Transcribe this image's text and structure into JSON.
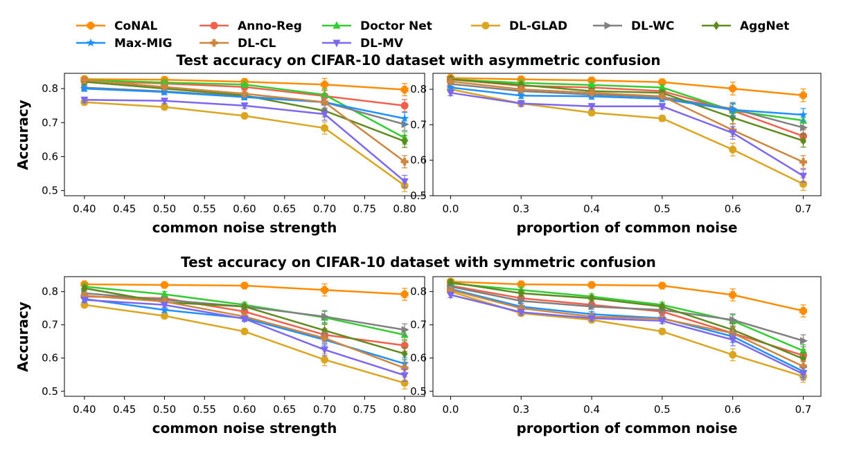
{
  "legend": [
    "CoNAL",
    "Anno-Reg",
    "Doctor Net",
    "DL-GLAD",
    "DL-WC",
    "AggNet",
    "Max-MIG",
    "DL-CL",
    "DL-MV"
  ],
  "series_style": {
    "CoNAL": {
      "color": "#ff8c00",
      "marker": "plusfilled"
    },
    "Anno-Reg": {
      "color": "#f0604c",
      "marker": "circle"
    },
    "Doctor Net": {
      "color": "#33cc33",
      "marker": "triangle-up"
    },
    "DL-GLAD": {
      "color": "#daa520",
      "marker": "circle"
    },
    "DL-WC": {
      "color": "#808080",
      "marker": "triangle-right"
    },
    "AggNet": {
      "color": "#5e8a1e",
      "marker": "diamond"
    },
    "Max-MIG": {
      "color": "#1e90ff",
      "marker": "star"
    },
    "DL-CL": {
      "color": "#cd853f",
      "marker": "plus"
    },
    "DL-MV": {
      "color": "#7b68ee",
      "marker": "triangle-down"
    }
  },
  "chart_data": [
    {
      "type": "line",
      "title": "Test accuracy on CIFAR-10 dataset with asymmetric confusion",
      "xlabel": "common noise strength",
      "ylabel": "Accuracy",
      "x": [
        0.4,
        0.5,
        0.6,
        0.7,
        0.8
      ],
      "xticks": [
        "0.40",
        "0.45",
        "0.50",
        "0.55",
        "0.60",
        "0.65",
        "0.70",
        "0.75",
        "0.80"
      ],
      "xtick_values": [
        0.4,
        0.45,
        0.5,
        0.55,
        0.6,
        0.65,
        0.7,
        0.75,
        0.8
      ],
      "xlim": [
        0.375,
        0.825
      ],
      "yticks": [
        "0.5",
        "0.6",
        "0.7",
        "0.8"
      ],
      "ylim": [
        0.485,
        0.845
      ],
      "series": [
        {
          "name": "CoNAL",
          "values": [
            0.828,
            0.826,
            0.82,
            0.812,
            0.797
          ]
        },
        {
          "name": "Anno-Reg",
          "values": [
            0.823,
            0.815,
            0.805,
            0.778,
            0.75
          ]
        },
        {
          "name": "Doctor Net",
          "values": [
            0.825,
            0.818,
            0.812,
            0.782,
            0.655
          ]
        },
        {
          "name": "DL-GLAD",
          "values": [
            0.76,
            0.746,
            0.72,
            0.684,
            0.515
          ]
        },
        {
          "name": "DL-WC",
          "values": [
            0.803,
            0.792,
            0.777,
            0.76,
            0.695
          ]
        },
        {
          "name": "AggNet",
          "values": [
            0.82,
            0.8,
            0.78,
            0.735,
            0.645
          ]
        },
        {
          "name": "Max-MIG",
          "values": [
            0.8,
            0.79,
            0.775,
            0.76,
            0.712
          ]
        },
        {
          "name": "DL-CL",
          "values": [
            0.825,
            0.805,
            0.785,
            0.76,
            0.585
          ]
        },
        {
          "name": "DL-MV",
          "values": [
            0.767,
            0.764,
            0.75,
            0.725,
            0.527
          ]
        }
      ]
    },
    {
      "type": "line",
      "title": "",
      "xlabel": "proportion of common noise",
      "ylabel": "",
      "x": [
        0.0,
        0.3,
        0.4,
        0.5,
        0.6,
        0.7
      ],
      "xticks": [
        "0.0",
        "0.3",
        "0.4",
        "0.5",
        "0.6",
        "0.7"
      ],
      "xtick_values": [
        0,
        1,
        2,
        3,
        4,
        5
      ],
      "xlim": [
        -0.25,
        5.25
      ],
      "yticks": [
        "0.5",
        "0.6",
        "0.7",
        "0.8"
      ],
      "ylim": [
        0.5,
        0.845
      ],
      "series": [
        {
          "name": "CoNAL",
          "values": [
            0.832,
            0.828,
            0.825,
            0.82,
            0.802,
            0.783
          ]
        },
        {
          "name": "Anno-Reg",
          "values": [
            0.828,
            0.81,
            0.805,
            0.795,
            0.74,
            0.668
          ]
        },
        {
          "name": "Doctor Net",
          "values": [
            0.828,
            0.818,
            0.812,
            0.805,
            0.74,
            0.712
          ]
        },
        {
          "name": "DL-GLAD",
          "values": [
            0.8,
            0.76,
            0.734,
            0.718,
            0.63,
            0.533
          ]
        },
        {
          "name": "DL-WC",
          "values": [
            0.815,
            0.795,
            0.785,
            0.778,
            0.745,
            0.692
          ]
        },
        {
          "name": "AggNet",
          "values": [
            0.828,
            0.812,
            0.795,
            0.79,
            0.72,
            0.655
          ]
        },
        {
          "name": "Max-MIG",
          "values": [
            0.805,
            0.782,
            0.78,
            0.773,
            0.742,
            0.728
          ]
        },
        {
          "name": "DL-CL",
          "values": [
            0.822,
            0.8,
            0.79,
            0.78,
            0.685,
            0.595
          ]
        },
        {
          "name": "DL-MV",
          "values": [
            0.79,
            0.76,
            0.752,
            0.752,
            0.677,
            0.556
          ]
        }
      ]
    },
    {
      "type": "line",
      "title": "Test accuracy on CIFAR-10 dataset with symmetric confusion",
      "xlabel": "common noise strength",
      "ylabel": "Accuracy",
      "x": [
        0.4,
        0.5,
        0.6,
        0.7,
        0.8
      ],
      "xticks": [
        "0.40",
        "0.45",
        "0.50",
        "0.55",
        "0.60",
        "0.65",
        "0.70",
        "0.75",
        "0.80"
      ],
      "xtick_values": [
        0.4,
        0.45,
        0.5,
        0.55,
        0.6,
        0.65,
        0.7,
        0.75,
        0.8
      ],
      "xlim": [
        0.375,
        0.825
      ],
      "yticks": [
        "0.5",
        "0.6",
        "0.7",
        "0.8"
      ],
      "ylim": [
        0.485,
        0.845
      ],
      "series": [
        {
          "name": "CoNAL",
          "values": [
            0.822,
            0.82,
            0.818,
            0.805,
            0.792
          ]
        },
        {
          "name": "Anno-Reg",
          "values": [
            0.785,
            0.78,
            0.74,
            0.67,
            0.638
          ]
        },
        {
          "name": "Doctor Net",
          "values": [
            0.815,
            0.792,
            0.76,
            0.722,
            0.67
          ]
        },
        {
          "name": "DL-GLAD",
          "values": [
            0.76,
            0.727,
            0.68,
            0.595,
            0.525
          ]
        },
        {
          "name": "DL-WC",
          "values": [
            0.795,
            0.775,
            0.755,
            0.725,
            0.685
          ]
        },
        {
          "name": "AggNet",
          "values": [
            0.81,
            0.768,
            0.755,
            0.683,
            0.613
          ]
        },
        {
          "name": "Max-MIG",
          "values": [
            0.778,
            0.745,
            0.72,
            0.655,
            0.583
          ]
        },
        {
          "name": "DL-CL",
          "values": [
            0.788,
            0.77,
            0.725,
            0.66,
            0.57
          ]
        },
        {
          "name": "DL-MV",
          "values": [
            0.775,
            0.76,
            0.718,
            0.625,
            0.548
          ]
        }
      ]
    },
    {
      "type": "line",
      "title": "",
      "xlabel": "proportion of common noise",
      "ylabel": "",
      "x": [
        0.0,
        0.3,
        0.4,
        0.5,
        0.6,
        0.7
      ],
      "xticks": [
        "0.0",
        "0.3",
        "0.4",
        "0.5",
        "0.6",
        "0.7"
      ],
      "xtick_values": [
        0,
        1,
        2,
        3,
        4,
        5
      ],
      "xlim": [
        -0.25,
        5.25
      ],
      "yticks": [
        "0.5",
        "0.6",
        "0.7",
        "0.8"
      ],
      "ylim": [
        0.485,
        0.845
      ],
      "series": [
        {
          "name": "CoNAL",
          "values": [
            0.83,
            0.822,
            0.82,
            0.818,
            0.79,
            0.742
          ]
        },
        {
          "name": "Anno-Reg",
          "values": [
            0.818,
            0.78,
            0.76,
            0.74,
            0.675,
            0.608
          ]
        },
        {
          "name": "Doctor Net",
          "values": [
            0.825,
            0.805,
            0.785,
            0.76,
            0.712,
            0.622
          ]
        },
        {
          "name": "DL-GLAD",
          "values": [
            0.8,
            0.735,
            0.715,
            0.68,
            0.61,
            0.545
          ]
        },
        {
          "name": "DL-WC",
          "values": [
            0.815,
            0.772,
            0.755,
            0.745,
            0.715,
            0.652
          ]
        },
        {
          "name": "AggNet",
          "values": [
            0.828,
            0.795,
            0.78,
            0.755,
            0.685,
            0.598
          ]
        },
        {
          "name": "Max-MIG",
          "values": [
            0.808,
            0.755,
            0.732,
            0.72,
            0.665,
            0.56
          ]
        },
        {
          "name": "DL-CL",
          "values": [
            0.805,
            0.75,
            0.725,
            0.718,
            0.675,
            0.575
          ]
        },
        {
          "name": "DL-MV",
          "values": [
            0.79,
            0.738,
            0.72,
            0.712,
            0.655,
            0.552
          ]
        }
      ]
    }
  ]
}
